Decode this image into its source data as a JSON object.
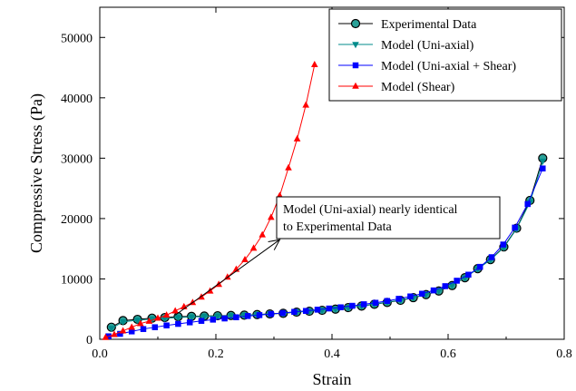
{
  "chart_data": {
    "type": "line",
    "xlabel": "Strain",
    "ylabel": "Compressive Stress (Pa)",
    "xlim": [
      0.0,
      0.8
    ],
    "ylim": [
      0,
      55000
    ],
    "x_ticks": [
      0.0,
      0.2,
      0.4,
      0.6,
      0.8
    ],
    "x_tick_labels": [
      "0.0",
      "0.2",
      "0.4",
      "0.6",
      "0.8"
    ],
    "y_ticks": [
      0,
      10000,
      20000,
      30000,
      40000,
      50000
    ],
    "y_tick_labels": [
      "0",
      "10000",
      "20000",
      "30000",
      "40000",
      "50000"
    ],
    "grid": false,
    "legend_position": "top-right",
    "series": [
      {
        "name": "Experimental Data",
        "color": "#000000",
        "marker": "circle",
        "marker_fill": "#2aa198",
        "points": [
          [
            0.02,
            2000
          ],
          [
            0.04,
            3100
          ],
          [
            0.065,
            3300
          ],
          [
            0.09,
            3500
          ],
          [
            0.112,
            3600
          ],
          [
            0.135,
            3750
          ],
          [
            0.158,
            3800
          ],
          [
            0.18,
            3850
          ],
          [
            0.203,
            3900
          ],
          [
            0.226,
            3950
          ],
          [
            0.249,
            4000
          ],
          [
            0.271,
            4100
          ],
          [
            0.293,
            4200
          ],
          [
            0.316,
            4300
          ],
          [
            0.339,
            4500
          ],
          [
            0.361,
            4650
          ],
          [
            0.383,
            4800
          ],
          [
            0.406,
            5000
          ],
          [
            0.428,
            5250
          ],
          [
            0.451,
            5500
          ],
          [
            0.473,
            5800
          ],
          [
            0.495,
            6100
          ],
          [
            0.518,
            6450
          ],
          [
            0.54,
            6900
          ],
          [
            0.562,
            7400
          ],
          [
            0.584,
            8000
          ],
          [
            0.607,
            8900
          ],
          [
            0.629,
            10200
          ],
          [
            0.651,
            11700
          ],
          [
            0.673,
            13200
          ],
          [
            0.696,
            15300
          ],
          [
            0.718,
            18400
          ],
          [
            0.741,
            23000
          ],
          [
            0.763,
            30000
          ]
        ]
      },
      {
        "name": "Model (Uni-axial)",
        "color": "#008b8b",
        "marker": "triangle-down",
        "marker_fill": "#008b8b",
        "points": [
          [
            0.02,
            1800
          ],
          [
            0.04,
            2900
          ],
          [
            0.065,
            3150
          ],
          [
            0.09,
            3350
          ],
          [
            0.112,
            3450
          ],
          [
            0.135,
            3600
          ],
          [
            0.158,
            3700
          ],
          [
            0.18,
            3800
          ],
          [
            0.203,
            3850
          ],
          [
            0.226,
            3920
          ],
          [
            0.249,
            3980
          ],
          [
            0.271,
            4080
          ],
          [
            0.293,
            4200
          ],
          [
            0.316,
            4320
          ],
          [
            0.339,
            4500
          ],
          [
            0.361,
            4650
          ],
          [
            0.383,
            4820
          ],
          [
            0.406,
            5020
          ],
          [
            0.428,
            5260
          ],
          [
            0.451,
            5520
          ],
          [
            0.473,
            5820
          ],
          [
            0.495,
            6150
          ],
          [
            0.518,
            6500
          ],
          [
            0.54,
            6950
          ],
          [
            0.562,
            7450
          ],
          [
            0.584,
            8050
          ],
          [
            0.607,
            8950
          ],
          [
            0.629,
            10200
          ],
          [
            0.651,
            11650
          ],
          [
            0.673,
            13150
          ],
          [
            0.696,
            15200
          ],
          [
            0.718,
            18300
          ],
          [
            0.741,
            22700
          ],
          [
            0.763,
            29500
          ]
        ]
      },
      {
        "name": "Model (Uni-axial + Shear)",
        "color": "#0000ff",
        "marker": "square",
        "marker_fill": "#0000ff",
        "points": [
          [
            0.015,
            500
          ],
          [
            0.035,
            900
          ],
          [
            0.055,
            1300
          ],
          [
            0.075,
            1700
          ],
          [
            0.095,
            2000
          ],
          [
            0.115,
            2300
          ],
          [
            0.135,
            2550
          ],
          [
            0.155,
            2800
          ],
          [
            0.175,
            3050
          ],
          [
            0.195,
            3250
          ],
          [
            0.215,
            3450
          ],
          [
            0.235,
            3650
          ],
          [
            0.255,
            3850
          ],
          [
            0.275,
            4000
          ],
          [
            0.295,
            4200
          ],
          [
            0.315,
            4350
          ],
          [
            0.335,
            4550
          ],
          [
            0.355,
            4700
          ],
          [
            0.375,
            4900
          ],
          [
            0.395,
            5100
          ],
          [
            0.415,
            5300
          ],
          [
            0.435,
            5550
          ],
          [
            0.455,
            5800
          ],
          [
            0.475,
            6050
          ],
          [
            0.495,
            6350
          ],
          [
            0.515,
            6700
          ],
          [
            0.535,
            7100
          ],
          [
            0.555,
            7550
          ],
          [
            0.575,
            8100
          ],
          [
            0.595,
            8800
          ],
          [
            0.615,
            9700
          ],
          [
            0.635,
            10700
          ],
          [
            0.655,
            12000
          ],
          [
            0.675,
            13600
          ],
          [
            0.695,
            15700
          ],
          [
            0.715,
            18500
          ],
          [
            0.737,
            22400
          ],
          [
            0.763,
            28300
          ]
        ]
      },
      {
        "name": "Model (Shear)",
        "color": "#ff0000",
        "marker": "triangle-up",
        "marker_fill": "#ff0000",
        "points": [
          [
            0.01,
            300
          ],
          [
            0.025,
            800
          ],
          [
            0.04,
            1400
          ],
          [
            0.055,
            2000
          ],
          [
            0.07,
            2600
          ],
          [
            0.085,
            3000
          ],
          [
            0.1,
            3500
          ],
          [
            0.115,
            4000
          ],
          [
            0.13,
            4700
          ],
          [
            0.145,
            5400
          ],
          [
            0.16,
            6100
          ],
          [
            0.175,
            7000
          ],
          [
            0.19,
            8000
          ],
          [
            0.205,
            9100
          ],
          [
            0.22,
            10300
          ],
          [
            0.235,
            11600
          ],
          [
            0.25,
            13200
          ],
          [
            0.265,
            15100
          ],
          [
            0.28,
            17300
          ],
          [
            0.295,
            20200
          ],
          [
            0.31,
            23800
          ],
          [
            0.325,
            28400
          ],
          [
            0.34,
            33200
          ],
          [
            0.355,
            38800
          ],
          [
            0.37,
            45500
          ]
        ]
      }
    ],
    "annotation": {
      "lines": [
        "Model (Uni-axial) nearly identical",
        "to Experimental Data"
      ],
      "arrow_from": [
        0.13,
        4000
      ],
      "arrow_to": [
        0.31,
        16500
      ]
    }
  }
}
